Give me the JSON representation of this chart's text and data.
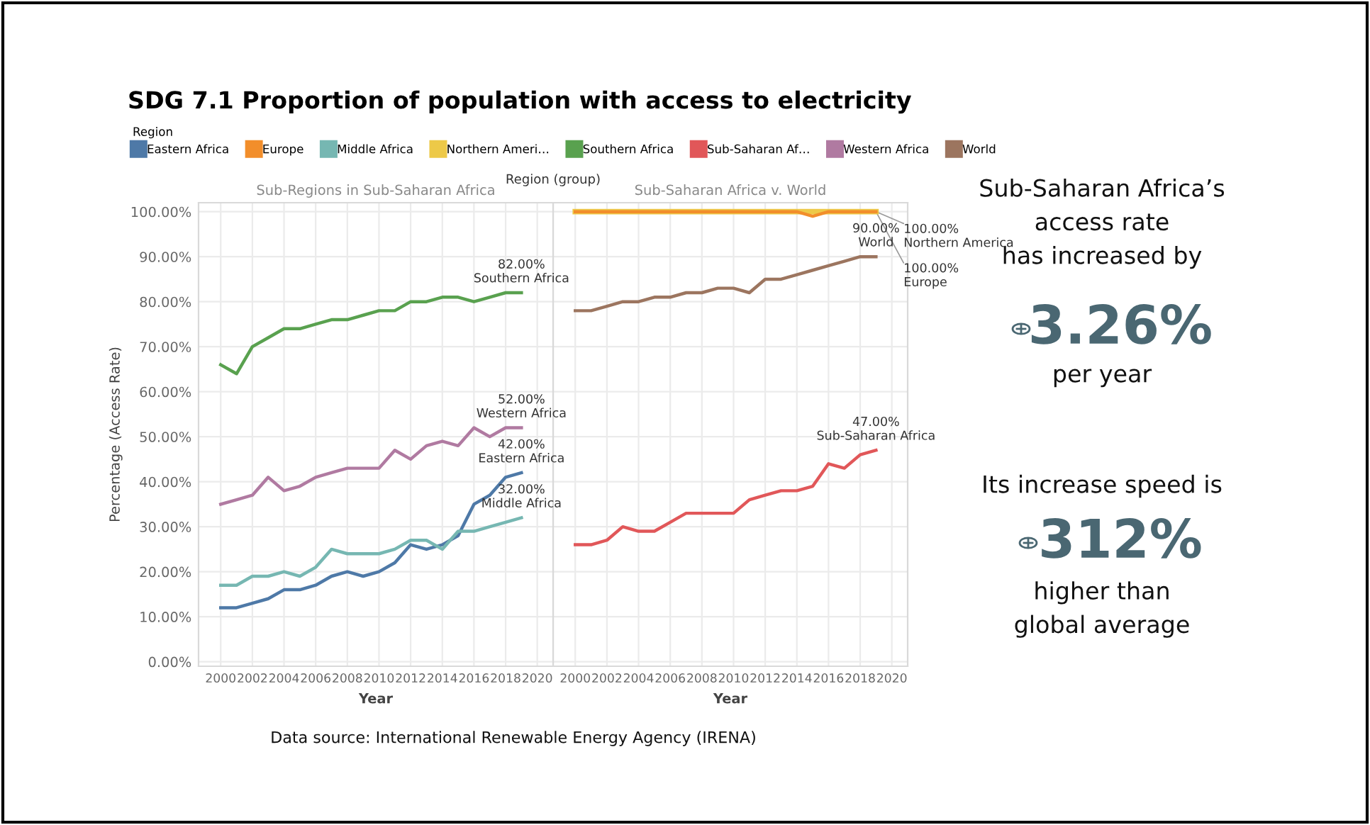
{
  "chart_data": [
    {
      "type": "line",
      "title": "SDG 7.1 Proportion of population with access to electricity",
      "subtitle": "Sub-Regions in Sub-Saharan Africa",
      "xlabel": "Year",
      "ylabel": "Percentage (Access Rate)",
      "legend_title": "Region",
      "legend": "top",
      "grid": true,
      "marker": "none",
      "line_style": "solid",
      "x": [
        2000,
        2001,
        2002,
        2003,
        2004,
        2005,
        2006,
        2007,
        2008,
        2009,
        2010,
        2011,
        2012,
        2013,
        2014,
        2015,
        2016,
        2017,
        2018,
        2019
      ],
      "xlim": [
        1998.6,
        2021
      ],
      "xticks": [
        2000,
        2002,
        2004,
        2006,
        2008,
        2010,
        2012,
        2014,
        2016,
        2018,
        2020
      ],
      "ylim": [
        -1,
        102
      ],
      "yticks": [
        {
          "value": 0,
          "label": "0.00%"
        },
        {
          "value": 10,
          "label": "10.00%"
        },
        {
          "value": 20,
          "label": "20.00%"
        },
        {
          "value": 30,
          "label": "30.00%"
        },
        {
          "value": 40,
          "label": "40.00%"
        },
        {
          "value": 50,
          "label": "50.00%"
        },
        {
          "value": 60,
          "label": "60.00%"
        },
        {
          "value": 70,
          "label": "70.00%"
        },
        {
          "value": 80,
          "label": "80.00%"
        },
        {
          "value": 90,
          "label": "90.00%"
        },
        {
          "value": 100,
          "label": "100.00%"
        }
      ],
      "series": [
        {
          "name": "Eastern Africa",
          "color": "#4e79a7",
          "values": [
            12,
            12,
            13,
            14,
            16,
            16,
            17,
            19,
            20,
            19,
            20,
            22,
            26,
            25,
            26,
            28,
            35,
            37,
            41,
            42
          ],
          "value_labels": [
            null,
            null,
            null,
            null,
            null,
            null,
            null,
            null,
            null,
            null,
            null,
            null,
            null,
            null,
            null,
            null,
            null,
            null,
            null,
            "42.00%\nEastern Africa"
          ]
        },
        {
          "name": "Middle Africa",
          "color": "#76b7b2",
          "values": [
            17,
            17,
            19,
            19,
            20,
            19,
            21,
            25,
            24,
            24,
            24,
            25,
            27,
            27,
            25,
            29,
            29,
            30,
            31,
            32
          ],
          "value_labels": [
            null,
            null,
            null,
            null,
            null,
            null,
            null,
            null,
            null,
            null,
            null,
            null,
            null,
            null,
            null,
            null,
            null,
            null,
            null,
            "32.00%\nMiddle Africa"
          ]
        },
        {
          "name": "Southern Africa",
          "color": "#59a14f",
          "values": [
            66,
            64,
            70,
            72,
            74,
            74,
            75,
            76,
            76,
            77,
            78,
            78,
            80,
            80,
            81,
            81,
            80,
            81,
            82,
            82
          ],
          "value_labels": [
            null,
            null,
            null,
            null,
            null,
            null,
            null,
            null,
            null,
            null,
            null,
            null,
            null,
            null,
            null,
            null,
            null,
            null,
            null,
            "82.00%\nSouthern Africa"
          ]
        },
        {
          "name": "Western Africa",
          "color": "#b07aa1",
          "values": [
            35,
            36,
            37,
            41,
            38,
            39,
            41,
            42,
            43,
            43,
            43,
            47,
            45,
            48,
            49,
            48,
            52,
            50,
            52,
            52
          ],
          "value_labels": [
            null,
            null,
            null,
            null,
            null,
            null,
            null,
            null,
            null,
            null,
            null,
            null,
            null,
            null,
            null,
            null,
            null,
            null,
            null,
            "52.00%\nWestern Africa"
          ]
        }
      ],
      "annotations": [
        "Region (group)",
        "Data source: International Renewable Energy Agency (IRENA)"
      ]
    },
    {
      "type": "line",
      "subtitle": "Sub-Saharan Africa v. World",
      "xlabel": "Year",
      "legend": "top",
      "grid": true,
      "marker": "none",
      "line_style": "solid",
      "tick_labels": "x",
      "x": [
        2000,
        2001,
        2002,
        2003,
        2004,
        2005,
        2006,
        2007,
        2008,
        2009,
        2010,
        2011,
        2012,
        2013,
        2014,
        2015,
        2016,
        2017,
        2018,
        2019
      ],
      "xlim": [
        1998.6,
        2021
      ],
      "xticks": [
        2000,
        2002,
        2004,
        2006,
        2008,
        2010,
        2012,
        2014,
        2016,
        2018,
        2020
      ],
      "ylim": [
        -1,
        102
      ],
      "yticks": [
        0,
        10,
        20,
        30,
        40,
        50,
        60,
        70,
        80,
        90,
        100
      ],
      "series": [
        {
          "name": "Northern Ameri…",
          "color": "#edc948",
          "values": [
            100,
            100,
            100,
            100,
            100,
            100,
            100,
            100,
            100,
            100,
            100,
            100,
            100,
            100,
            100,
            100,
            100,
            100,
            100,
            100
          ],
          "value_labels": [
            null,
            null,
            null,
            null,
            null,
            null,
            null,
            null,
            null,
            null,
            null,
            null,
            null,
            null,
            null,
            null,
            null,
            null,
            null,
            "100.00%\nNorthern America"
          ]
        },
        {
          "name": "Europe",
          "color": "#f28e2b",
          "values": [
            100,
            100,
            100,
            100,
            100,
            100,
            100,
            100,
            100,
            100,
            100,
            100,
            100,
            100,
            100,
            99,
            100,
            100,
            100,
            100
          ],
          "value_labels": [
            null,
            null,
            null,
            null,
            null,
            null,
            null,
            null,
            null,
            null,
            null,
            null,
            null,
            null,
            null,
            null,
            null,
            null,
            null,
            "100.00%\nEurope"
          ]
        },
        {
          "name": "Sub-Saharan Af…",
          "color": "#e15759",
          "values": [
            26,
            26,
            27,
            30,
            29,
            29,
            31,
            33,
            33,
            33,
            33,
            36,
            37,
            38,
            38,
            39,
            44,
            43,
            46,
            47
          ],
          "value_labels": [
            null,
            null,
            null,
            null,
            null,
            null,
            null,
            null,
            null,
            null,
            null,
            null,
            null,
            null,
            null,
            null,
            null,
            null,
            null,
            "47.00%\nSub-Saharan Africa"
          ]
        },
        {
          "name": "World",
          "color": "#9c755f",
          "values": [
            78,
            78,
            79,
            80,
            80,
            81,
            81,
            82,
            82,
            83,
            83,
            82,
            85,
            85,
            86,
            87,
            88,
            89,
            90,
            90
          ],
          "value_labels": [
            null,
            null,
            null,
            null,
            null,
            null,
            null,
            null,
            null,
            null,
            null,
            null,
            null,
            null,
            null,
            null,
            null,
            null,
            null,
            "90.00%\nWorld"
          ]
        }
      ]
    },
    {
      "type": "other",
      "annotations": [
        "Sub-Saharan Africa’s\naccess rate\nhas increased by",
        "3.26%",
        "per year",
        "Its increase speed is",
        "312%",
        "higher than\nglobal average"
      ]
    }
  ]
}
